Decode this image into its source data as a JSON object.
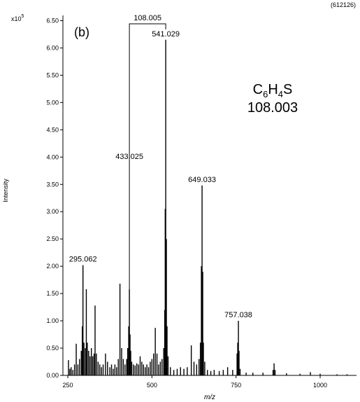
{
  "chart_data": {
    "type": "bar",
    "panel_label": "(b)",
    "run_id": "(612126)",
    "ylabel": "Intensity",
    "xlabel": "m/z",
    "y_exponent_label": "x10",
    "y_exponent_power": "5",
    "xlim": [
      250,
      1100
    ],
    "ylim": [
      0,
      6.7
    ],
    "x_ticks": [
      250,
      500,
      750,
      1000
    ],
    "y_ticks": [
      0.0,
      0.5,
      1.0,
      1.5,
      2.0,
      2.5,
      3.0,
      3.5,
      4.0,
      4.5,
      5.0,
      5.5,
      6.0,
      6.5
    ],
    "formula": {
      "main": "C",
      "sub1": "6",
      "mid": "H",
      "sub2": "4",
      "tail": "S"
    },
    "formula_mass": "108.003",
    "difference_label": "108.005",
    "difference_from": 433.025,
    "difference_to": 541.029,
    "labeled_peaks": [
      {
        "mz": 295.062,
        "intensity": 2.02,
        "label": "295.062"
      },
      {
        "mz": 433.025,
        "intensity": 1.58,
        "label": "433.025"
      },
      {
        "mz": 541.029,
        "intensity": 6.15,
        "label": "541.029"
      },
      {
        "mz": 649.033,
        "intensity": 3.48,
        "label": "649.033"
      },
      {
        "mz": 757.038,
        "intensity": 1.0,
        "label": "757.038"
      }
    ],
    "peaks": [
      {
        "mz": 252,
        "intensity": 0.28
      },
      {
        "mz": 256,
        "intensity": 0.12
      },
      {
        "mz": 260,
        "intensity": 0.15
      },
      {
        "mz": 265,
        "intensity": 0.1
      },
      {
        "mz": 270,
        "intensity": 0.2
      },
      {
        "mz": 275,
        "intensity": 0.58
      },
      {
        "mz": 280,
        "intensity": 0.2
      },
      {
        "mz": 285,
        "intensity": 0.3
      },
      {
        "mz": 290,
        "intensity": 0.45
      },
      {
        "mz": 293,
        "intensity": 0.9
      },
      {
        "mz": 295.062,
        "intensity": 2.02
      },
      {
        "mz": 298,
        "intensity": 0.6
      },
      {
        "mz": 302,
        "intensity": 0.5
      },
      {
        "mz": 305,
        "intensity": 1.58
      },
      {
        "mz": 308,
        "intensity": 0.6
      },
      {
        "mz": 312,
        "intensity": 0.45
      },
      {
        "mz": 316,
        "intensity": 0.35
      },
      {
        "mz": 320,
        "intensity": 0.5
      },
      {
        "mz": 324,
        "intensity": 0.35
      },
      {
        "mz": 328,
        "intensity": 0.4
      },
      {
        "mz": 331,
        "intensity": 1.28
      },
      {
        "mz": 335,
        "intensity": 0.4
      },
      {
        "mz": 340,
        "intensity": 0.25
      },
      {
        "mz": 345,
        "intensity": 0.2
      },
      {
        "mz": 350,
        "intensity": 0.15
      },
      {
        "mz": 355,
        "intensity": 0.2
      },
      {
        "mz": 362,
        "intensity": 0.4
      },
      {
        "mz": 368,
        "intensity": 0.25
      },
      {
        "mz": 375,
        "intensity": 0.15
      },
      {
        "mz": 380,
        "intensity": 0.2
      },
      {
        "mz": 385,
        "intensity": 0.12
      },
      {
        "mz": 390,
        "intensity": 0.2
      },
      {
        "mz": 395,
        "intensity": 0.15
      },
      {
        "mz": 400,
        "intensity": 0.3
      },
      {
        "mz": 405,
        "intensity": 1.68
      },
      {
        "mz": 410,
        "intensity": 0.5
      },
      {
        "mz": 415,
        "intensity": 0.3
      },
      {
        "mz": 420,
        "intensity": 0.2
      },
      {
        "mz": 425,
        "intensity": 0.3
      },
      {
        "mz": 428,
        "intensity": 0.5
      },
      {
        "mz": 431,
        "intensity": 0.9
      },
      {
        "mz": 433.025,
        "intensity": 1.58
      },
      {
        "mz": 435,
        "intensity": 0.75
      },
      {
        "mz": 437,
        "intensity": 0.45
      },
      {
        "mz": 440,
        "intensity": 0.25
      },
      {
        "mz": 445,
        "intensity": 0.2
      },
      {
        "mz": 450,
        "intensity": 0.18
      },
      {
        "mz": 455,
        "intensity": 0.22
      },
      {
        "mz": 460,
        "intensity": 0.2
      },
      {
        "mz": 465,
        "intensity": 0.35
      },
      {
        "mz": 470,
        "intensity": 0.25
      },
      {
        "mz": 475,
        "intensity": 0.2
      },
      {
        "mz": 480,
        "intensity": 0.15
      },
      {
        "mz": 485,
        "intensity": 0.2
      },
      {
        "mz": 490,
        "intensity": 0.15
      },
      {
        "mz": 495,
        "intensity": 0.25
      },
      {
        "mz": 500,
        "intensity": 0.3
      },
      {
        "mz": 505,
        "intensity": 0.4
      },
      {
        "mz": 510,
        "intensity": 0.87
      },
      {
        "mz": 515,
        "intensity": 0.4
      },
      {
        "mz": 520,
        "intensity": 0.2
      },
      {
        "mz": 525,
        "intensity": 0.25
      },
      {
        "mz": 530,
        "intensity": 0.3
      },
      {
        "mz": 535,
        "intensity": 0.5
      },
      {
        "mz": 538,
        "intensity": 1.2
      },
      {
        "mz": 539.5,
        "intensity": 3.05
      },
      {
        "mz": 541.029,
        "intensity": 6.15
      },
      {
        "mz": 543,
        "intensity": 2.5
      },
      {
        "mz": 545,
        "intensity": 0.9
      },
      {
        "mz": 548,
        "intensity": 0.35
      },
      {
        "mz": 555,
        "intensity": 0.15
      },
      {
        "mz": 565,
        "intensity": 0.1
      },
      {
        "mz": 575,
        "intensity": 0.12
      },
      {
        "mz": 585,
        "intensity": 0.15
      },
      {
        "mz": 595,
        "intensity": 0.12
      },
      {
        "mz": 605,
        "intensity": 0.15
      },
      {
        "mz": 617,
        "intensity": 0.55
      },
      {
        "mz": 625,
        "intensity": 0.25
      },
      {
        "mz": 633,
        "intensity": 0.2
      },
      {
        "mz": 640,
        "intensity": 0.3
      },
      {
        "mz": 644,
        "intensity": 0.6
      },
      {
        "mz": 647,
        "intensity": 2.0
      },
      {
        "mz": 649.033,
        "intensity": 3.48
      },
      {
        "mz": 651,
        "intensity": 1.9
      },
      {
        "mz": 653,
        "intensity": 0.6
      },
      {
        "mz": 657,
        "intensity": 0.25
      },
      {
        "mz": 665,
        "intensity": 0.1
      },
      {
        "mz": 675,
        "intensity": 0.08
      },
      {
        "mz": 685,
        "intensity": 0.1
      },
      {
        "mz": 700,
        "intensity": 0.08
      },
      {
        "mz": 712,
        "intensity": 0.1
      },
      {
        "mz": 725,
        "intensity": 0.15
      },
      {
        "mz": 740,
        "intensity": 0.1
      },
      {
        "mz": 753,
        "intensity": 0.4
      },
      {
        "mz": 755,
        "intensity": 0.6
      },
      {
        "mz": 757.038,
        "intensity": 1.0
      },
      {
        "mz": 759,
        "intensity": 0.45
      },
      {
        "mz": 762,
        "intensity": 0.12
      },
      {
        "mz": 780,
        "intensity": 0.05
      },
      {
        "mz": 800,
        "intensity": 0.05
      },
      {
        "mz": 830,
        "intensity": 0.05
      },
      {
        "mz": 860,
        "intensity": 0.1
      },
      {
        "mz": 863,
        "intensity": 0.22
      },
      {
        "mz": 866,
        "intensity": 0.1
      },
      {
        "mz": 900,
        "intensity": 0.04
      },
      {
        "mz": 940,
        "intensity": 0.03
      },
      {
        "mz": 971,
        "intensity": 0.06
      },
      {
        "mz": 1000,
        "intensity": 0.03
      },
      {
        "mz": 1050,
        "intensity": 0.02
      },
      {
        "mz": 1080,
        "intensity": 0.02
      }
    ]
  }
}
